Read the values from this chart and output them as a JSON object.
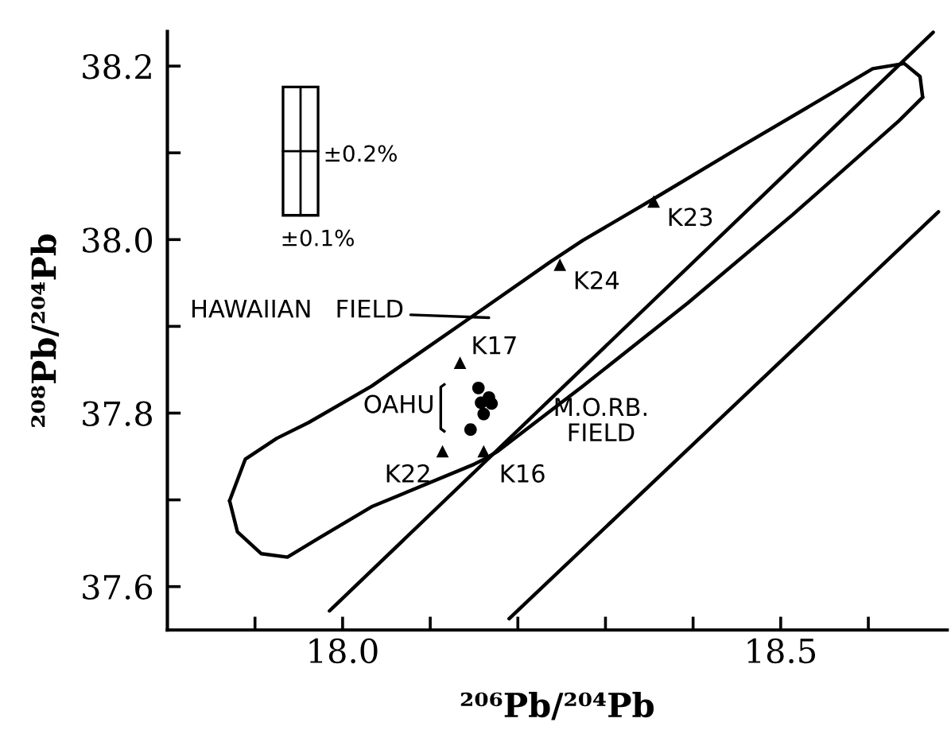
{
  "chart_data": {
    "type": "scatter",
    "xlabel": "²⁰⁶Pb/²⁰⁴Pb",
    "ylabel": "²⁰⁸Pb/²⁰⁴Pb",
    "xlim": [
      17.8,
      18.69
    ],
    "ylim": [
      37.55,
      38.24
    ],
    "xticks": [
      {
        "value": 17.9,
        "label": null
      },
      {
        "value": 18.0,
        "label": "18.0"
      },
      {
        "value": 18.1,
        "label": null
      },
      {
        "value": 18.2,
        "label": null
      },
      {
        "value": 18.3,
        "label": null
      },
      {
        "value": 18.4,
        "label": null
      },
      {
        "value": 18.5,
        "label": "18.5"
      },
      {
        "value": 18.6,
        "label": null
      }
    ],
    "yticks": [
      {
        "value": 37.6,
        "label": "37.6"
      },
      {
        "value": 37.7,
        "label": null
      },
      {
        "value": 37.8,
        "label": "37.8"
      },
      {
        "value": 37.9,
        "label": null
      },
      {
        "value": 38.0,
        "label": "38.0"
      },
      {
        "value": 38.1,
        "label": null
      },
      {
        "value": 38.2,
        "label": "38.2"
      }
    ],
    "grid": false,
    "legend": false,
    "series": [
      {
        "marker": "triangle",
        "color": "#000000",
        "x": [
          18.355,
          18.248,
          18.134,
          18.114,
          18.161
        ],
        "values": [
          38.044,
          37.971,
          37.858,
          37.756,
          37.756
        ],
        "value_labels": [
          "K23",
          "K24",
          "K17",
          "K22",
          "K16"
        ]
      },
      {
        "marker": "circle",
        "color": "#000000",
        "x": [
          18.155,
          18.167,
          18.158,
          18.17,
          18.161,
          18.146
        ],
        "values": [
          37.829,
          37.818,
          37.812,
          37.811,
          37.799,
          37.781
        ]
      },
      {
        "type": "line",
        "color": "#000000",
        "line_style": "solid",
        "x": [
          17.871,
          17.889,
          17.925,
          17.961,
          18.033,
          18.093,
          18.153,
          18.238,
          18.274,
          18.355,
          18.454,
          18.545,
          18.605,
          18.641,
          18.659,
          18.662
        ],
        "values": [
          37.699,
          37.747,
          37.771,
          37.789,
          37.831,
          37.873,
          37.915,
          37.975,
          37.999,
          38.047,
          38.107,
          38.161,
          38.197,
          38.203,
          38.188,
          38.164
        ]
      },
      {
        "type": "line",
        "color": "#000000",
        "line_style": "solid",
        "x": [
          17.871,
          17.88,
          17.907,
          17.937,
          17.973,
          18.033,
          18.15,
          18.162,
          18.177,
          18.274,
          18.394,
          18.514,
          18.635,
          18.662
        ],
        "values": [
          37.699,
          37.663,
          37.638,
          37.634,
          37.656,
          37.692,
          37.741,
          37.747,
          37.756,
          37.831,
          37.927,
          38.029,
          38.137,
          38.164
        ]
      },
      {
        "type": "line",
        "color": "#000000",
        "line_style": "solid",
        "x": [
          17.985,
          18.674
        ],
        "values": [
          37.572,
          38.239
        ]
      },
      {
        "type": "line",
        "color": "#000000",
        "line_style": "solid",
        "x": [
          18.19,
          18.68
        ],
        "values": [
          37.563,
          38.032
        ]
      }
    ],
    "annotations": [
      "OAHU",
      "HAWAIIAN   FIELD",
      "M.O.RB.\nFIELD",
      "±0.2%",
      "±0.1%"
    ]
  }
}
